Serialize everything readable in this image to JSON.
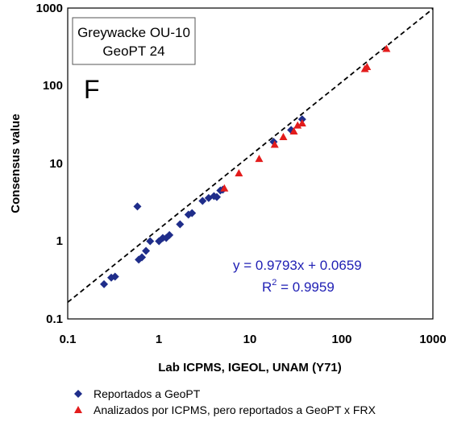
{
  "chart_data": {
    "type": "scatter",
    "xlabel": "Lab ICPMS, IGEOL, UNAM (Y71)",
    "ylabel": "Consensus value",
    "x_scale": "log",
    "y_scale": "log",
    "xlim": [
      0.1,
      1000
    ],
    "ylim": [
      0.1,
      1000
    ],
    "x_ticks": [
      "0.1",
      "1",
      "10",
      "100",
      "1000"
    ],
    "y_ticks": [
      "0.1",
      "1",
      "10",
      "100",
      "1000"
    ],
    "grid": false,
    "legend_position": "bottom",
    "annotation_box": [
      "Greywacke OU-10",
      "GeoPT 24"
    ],
    "panel_label": "F",
    "equation": "y = 0.9793x + 0.0659",
    "r2_label": "R",
    "r2_sup": "2",
    "r2_value": " = 0.9959",
    "trendline": {
      "slope": 0.9793,
      "intercept": 0.0659,
      "style": "dashed",
      "color": "#000000"
    },
    "series": [
      {
        "name": "Reportados a GeoPT",
        "marker": "diamond",
        "color": "#1f2d8a",
        "points": [
          [
            0.25,
            0.28
          ],
          [
            0.3,
            0.34
          ],
          [
            0.33,
            0.35
          ],
          [
            0.58,
            2.8
          ],
          [
            0.6,
            0.58
          ],
          [
            0.65,
            0.62
          ],
          [
            0.72,
            0.75
          ],
          [
            0.8,
            1.0
          ],
          [
            1.0,
            1.0
          ],
          [
            1.1,
            1.1
          ],
          [
            1.2,
            1.1
          ],
          [
            1.3,
            1.2
          ],
          [
            1.7,
            1.65
          ],
          [
            2.1,
            2.2
          ],
          [
            2.3,
            2.3
          ],
          [
            3.0,
            3.3
          ],
          [
            3.5,
            3.6
          ],
          [
            4.0,
            3.8
          ],
          [
            4.3,
            3.7
          ],
          [
            4.7,
            4.5
          ],
          [
            5.0,
            4.6
          ],
          [
            18.0,
            19.0
          ],
          [
            28.0,
            27.0
          ],
          [
            37.0,
            37.0
          ]
        ]
      },
      {
        "name": "Analizados por ICPMS, pero reportados a GeoPT x FRX",
        "marker": "triangle",
        "color": "#e31c1c",
        "points": [
          [
            5.2,
            4.8
          ],
          [
            7.5,
            7.5
          ],
          [
            12.5,
            11.5
          ],
          [
            18.5,
            17.5
          ],
          [
            23.0,
            22.0
          ],
          [
            30.0,
            26.0
          ],
          [
            33.0,
            31.0
          ],
          [
            37.0,
            33.0
          ],
          [
            180.0,
            165.0
          ],
          [
            190.0,
            175.0
          ],
          [
            310.0,
            300.0
          ]
        ]
      }
    ]
  },
  "colors": {
    "text_blue": "#1f1fb4",
    "diamond": "#1f2d8a",
    "triangle": "#e31c1c"
  }
}
